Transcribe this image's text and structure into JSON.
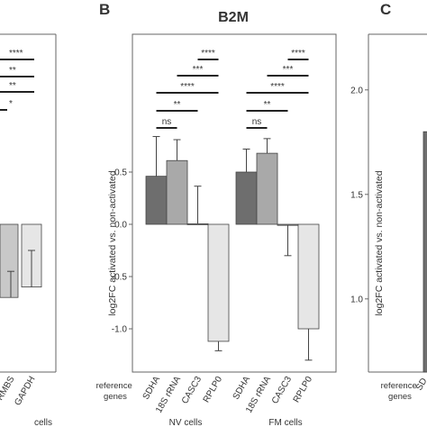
{
  "figure": {
    "panel_letters": [
      "B",
      "C"
    ]
  },
  "chart_data": [
    {
      "panel": "",
      "type": "bar",
      "partial": true,
      "categories": [
        "RMBS",
        "GAPDH"
      ],
      "visible_category_labels": [
        "RMBS",
        "GAPDH"
      ],
      "values": [
        -0.7,
        -0.6
      ],
      "errors": [
        0.25,
        0.35
      ],
      "bar_colors": [
        "#c8c8c8",
        "#e6e6e6"
      ],
      "significance": [
        "****",
        "**",
        "**",
        "*"
      ],
      "group_label": "cells"
    },
    {
      "panel": "B",
      "type": "bar",
      "title": "B2M",
      "ylabel": "log2FC activated vs. non-activated",
      "ylim": [
        -1.3,
        1.25
      ],
      "yticks": [
        -1.0,
        -0.5,
        0.0,
        0.5
      ],
      "ytick_labels": [
        "-1.0",
        "-0.5",
        "0.0",
        "0.5"
      ],
      "axis_row_label": "reference genes",
      "categories": [
        "SDHA",
        "18S rRNA",
        "CASC3",
        "RPLP0"
      ],
      "groups": [
        {
          "name": "NV cells",
          "values": [
            0.46,
            0.61,
            0.005,
            -1.12
          ],
          "errors": [
            0.38,
            0.2,
            0.36,
            0.09
          ]
        },
        {
          "name": "FM cells",
          "values": [
            0.5,
            0.68,
            -0.01,
            -1.0
          ],
          "errors": [
            0.22,
            0.14,
            0.29,
            0.3
          ]
        }
      ],
      "bar_colors": [
        "#6e6e6e",
        "#a9a9a9",
        "#8a8a8a",
        "#e6e6e6"
      ],
      "significance": [
        "ns",
        "**",
        "****",
        "***",
        "****"
      ],
      "grid": false
    },
    {
      "panel": "C",
      "type": "bar",
      "partial": true,
      "ylabel": "log2FC activated vs. non-activated",
      "yticks": [
        1.0,
        1.5,
        2.0
      ],
      "ytick_labels": [
        "1.0",
        "1.5",
        "2.0"
      ],
      "axis_row_label": "reference genes",
      "categories": [
        "SD"
      ],
      "values": [
        1.8
      ],
      "bar_colors": [
        "#6e6e6e"
      ]
    }
  ]
}
